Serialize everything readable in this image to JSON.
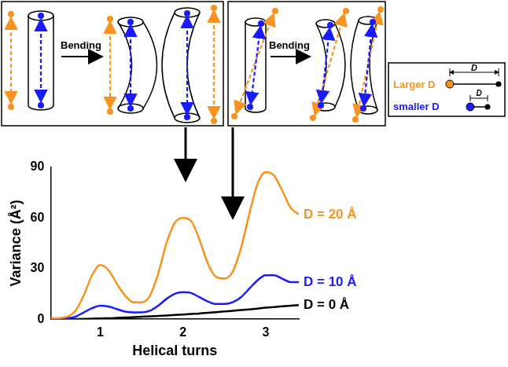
{
  "chart_data": {
    "type": "line",
    "x_label": "Helical turns",
    "y_label": "Variance (Å²)",
    "x": [
      0.4,
      0.5,
      0.6,
      0.7,
      0.8,
      0.9,
      1.0,
      1.1,
      1.2,
      1.3,
      1.4,
      1.5,
      1.6,
      1.7,
      1.8,
      1.9,
      2.0,
      2.1,
      2.2,
      2.3,
      2.4,
      2.5,
      2.6,
      2.7,
      2.8,
      2.9,
      3.0,
      3.1,
      3.2,
      3.3,
      3.4
    ],
    "series": [
      {
        "name": "D = 20 Å",
        "color": "#f7931e",
        "values": [
          0.5,
          0.7,
          1.5,
          5,
          14,
          26,
          32,
          29,
          21,
          14,
          10,
          10,
          14,
          27,
          45,
          57,
          60,
          58,
          47,
          33,
          25,
          24,
          28,
          42,
          62,
          80,
          87,
          85,
          76,
          66,
          62
        ]
      },
      {
        "name": "D = 10 Å",
        "color": "#1a1aff",
        "values": [
          0.2,
          0.3,
          0.6,
          1.5,
          4,
          6.5,
          8,
          7.5,
          6,
          4.5,
          4,
          4,
          5,
          8,
          12,
          15,
          16,
          15.5,
          13,
          10.5,
          9,
          9,
          10,
          13,
          18,
          23,
          26,
          26,
          24,
          22,
          22
        ]
      },
      {
        "name": "D = 0 Å",
        "color": "#000000",
        "values": [
          0,
          0,
          0,
          0.1,
          0.2,
          0.3,
          0.5,
          0.6,
          0.8,
          1,
          1.2,
          1.5,
          1.7,
          2,
          2.2,
          2.5,
          2.8,
          3.1,
          3.4,
          3.8,
          4.2,
          4.6,
          5,
          5.4,
          5.8,
          6.3,
          6.8,
          7.2,
          7.6,
          8,
          8.3
        ]
      }
    ],
    "xlim": [
      0.4,
      3.4
    ],
    "xticks": [
      1,
      2,
      3
    ],
    "ylim": [
      0,
      90
    ],
    "yticks": [
      0,
      30,
      60,
      90
    ],
    "grid": false
  },
  "diagram": {
    "panels": [
      {
        "arrow_label": "Bending"
      },
      {
        "arrow_label": "Bending"
      }
    ],
    "key": [
      {
        "label": "Larger D",
        "color": "#f7931e",
        "marker_label": "D"
      },
      {
        "label": "smaller D",
        "color": "#1a1aff",
        "marker_label": "D"
      }
    ]
  }
}
